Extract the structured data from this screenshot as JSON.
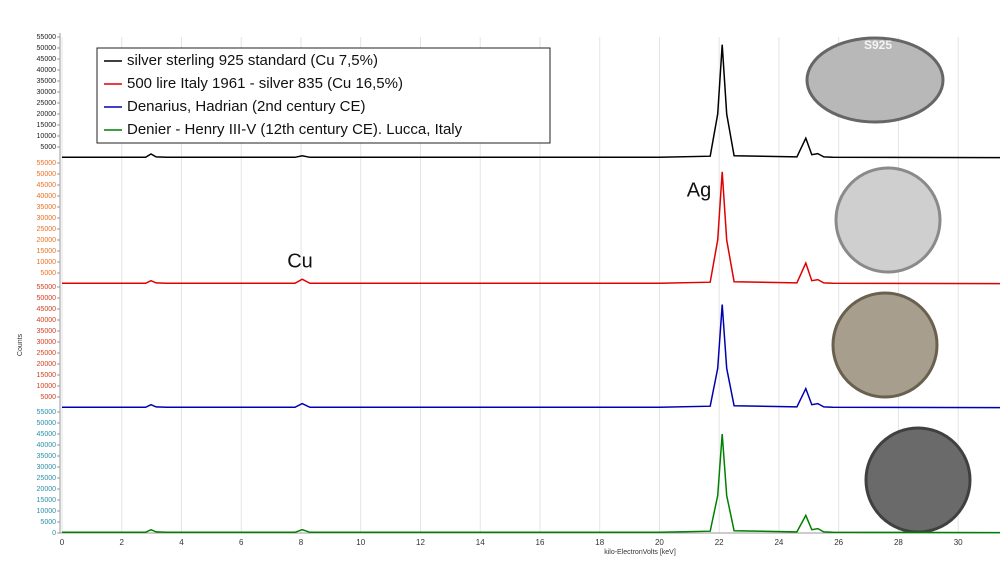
{
  "chart_data": [
    {
      "type": "line",
      "name": "silver sterling 925 standard (Cu 7,5%)",
      "color": "#000000",
      "tick_color": "#222222",
      "y_label": "Counts",
      "annotations": [
        "S925"
      ],
      "x": [
        0,
        2.8,
        2.98,
        3.15,
        3.5,
        7.8,
        8.04,
        8.3,
        8.9,
        20,
        21.7,
        21.95,
        22.1,
        22.25,
        22.5,
        24.6,
        24.9,
        25.1,
        25.3,
        25.5,
        25.8,
        31.4
      ],
      "values": [
        300,
        300,
        1800,
        500,
        300,
        300,
        1000,
        300,
        300,
        300,
        800,
        20000,
        51500,
        20000,
        1000,
        500,
        9000,
        1500,
        2000,
        500,
        300,
        200
      ],
      "ylim": [
        0,
        55000
      ],
      "yticks": [
        5000,
        10000,
        15000,
        20000,
        25000,
        30000,
        35000,
        40000,
        45000,
        50000,
        55000
      ]
    },
    {
      "type": "line",
      "name": "500 lire Italy 1961 - silver 835 (Cu 16,5%)",
      "color": "#e00000",
      "tick_color": "#e87020",
      "annotations": [
        "Ag",
        "Cu"
      ],
      "x": [
        0,
        2.8,
        2.98,
        3.15,
        3.5,
        7.8,
        8.04,
        8.3,
        8.9,
        20,
        21.7,
        21.95,
        22.1,
        22.25,
        22.5,
        24.6,
        24.9,
        25.1,
        25.3,
        25.5,
        25.8,
        31.4
      ],
      "values": [
        300,
        300,
        1500,
        500,
        300,
        300,
        2200,
        300,
        300,
        300,
        800,
        20000,
        51000,
        20000,
        1000,
        500,
        9500,
        1500,
        2000,
        500,
        300,
        200
      ],
      "ylim": [
        0,
        55000
      ],
      "yticks": [
        5000,
        10000,
        15000,
        20000,
        25000,
        30000,
        35000,
        40000,
        45000,
        50000,
        55000
      ]
    },
    {
      "type": "line",
      "name": "Denarius, Hadrian (2nd century CE)",
      "color": "#0000b0",
      "tick_color": "#d04020",
      "x": [
        0,
        2.8,
        2.98,
        3.15,
        3.5,
        7.8,
        8.04,
        8.3,
        8.9,
        20,
        21.7,
        21.95,
        22.1,
        22.25,
        22.5,
        24.6,
        24.9,
        25.1,
        25.3,
        25.5,
        25.8,
        31.4
      ],
      "values": [
        300,
        300,
        1500,
        500,
        300,
        300,
        2000,
        300,
        300,
        300,
        800,
        18000,
        47000,
        18000,
        1000,
        500,
        8800,
        1500,
        2000,
        500,
        300,
        200
      ],
      "ylim": [
        0,
        55000
      ],
      "yticks": [
        5000,
        10000,
        15000,
        20000,
        25000,
        30000,
        35000,
        40000,
        45000,
        50000,
        55000
      ]
    },
    {
      "type": "line",
      "name": "Denier - Henry III-V (12th century CE). Lucca, Italy",
      "color": "#008000",
      "tick_color": "#2a8fa8",
      "x_label": "kilo-ElectronVolts [keV]",
      "x": [
        0,
        2.8,
        2.98,
        3.15,
        3.5,
        7.8,
        8.04,
        8.3,
        8.9,
        20,
        21.7,
        21.95,
        22.1,
        22.25,
        22.5,
        24.6,
        24.9,
        25.1,
        25.3,
        25.5,
        25.8,
        31.4
      ],
      "values": [
        300,
        300,
        1500,
        500,
        300,
        300,
        1500,
        300,
        300,
        300,
        800,
        17000,
        45000,
        17000,
        1000,
        500,
        8000,
        1500,
        2000,
        500,
        300,
        200
      ],
      "ylim": [
        0,
        55000
      ],
      "yticks": [
        0,
        5000,
        10000,
        15000,
        20000,
        25000,
        30000,
        35000,
        40000,
        45000,
        50000,
        55000
      ],
      "xlim": [
        0,
        31.4
      ],
      "xticks": [
        0,
        2,
        4,
        6,
        8,
        10,
        12,
        14,
        16,
        18,
        20,
        22,
        24,
        26,
        28,
        30
      ]
    }
  ]
}
